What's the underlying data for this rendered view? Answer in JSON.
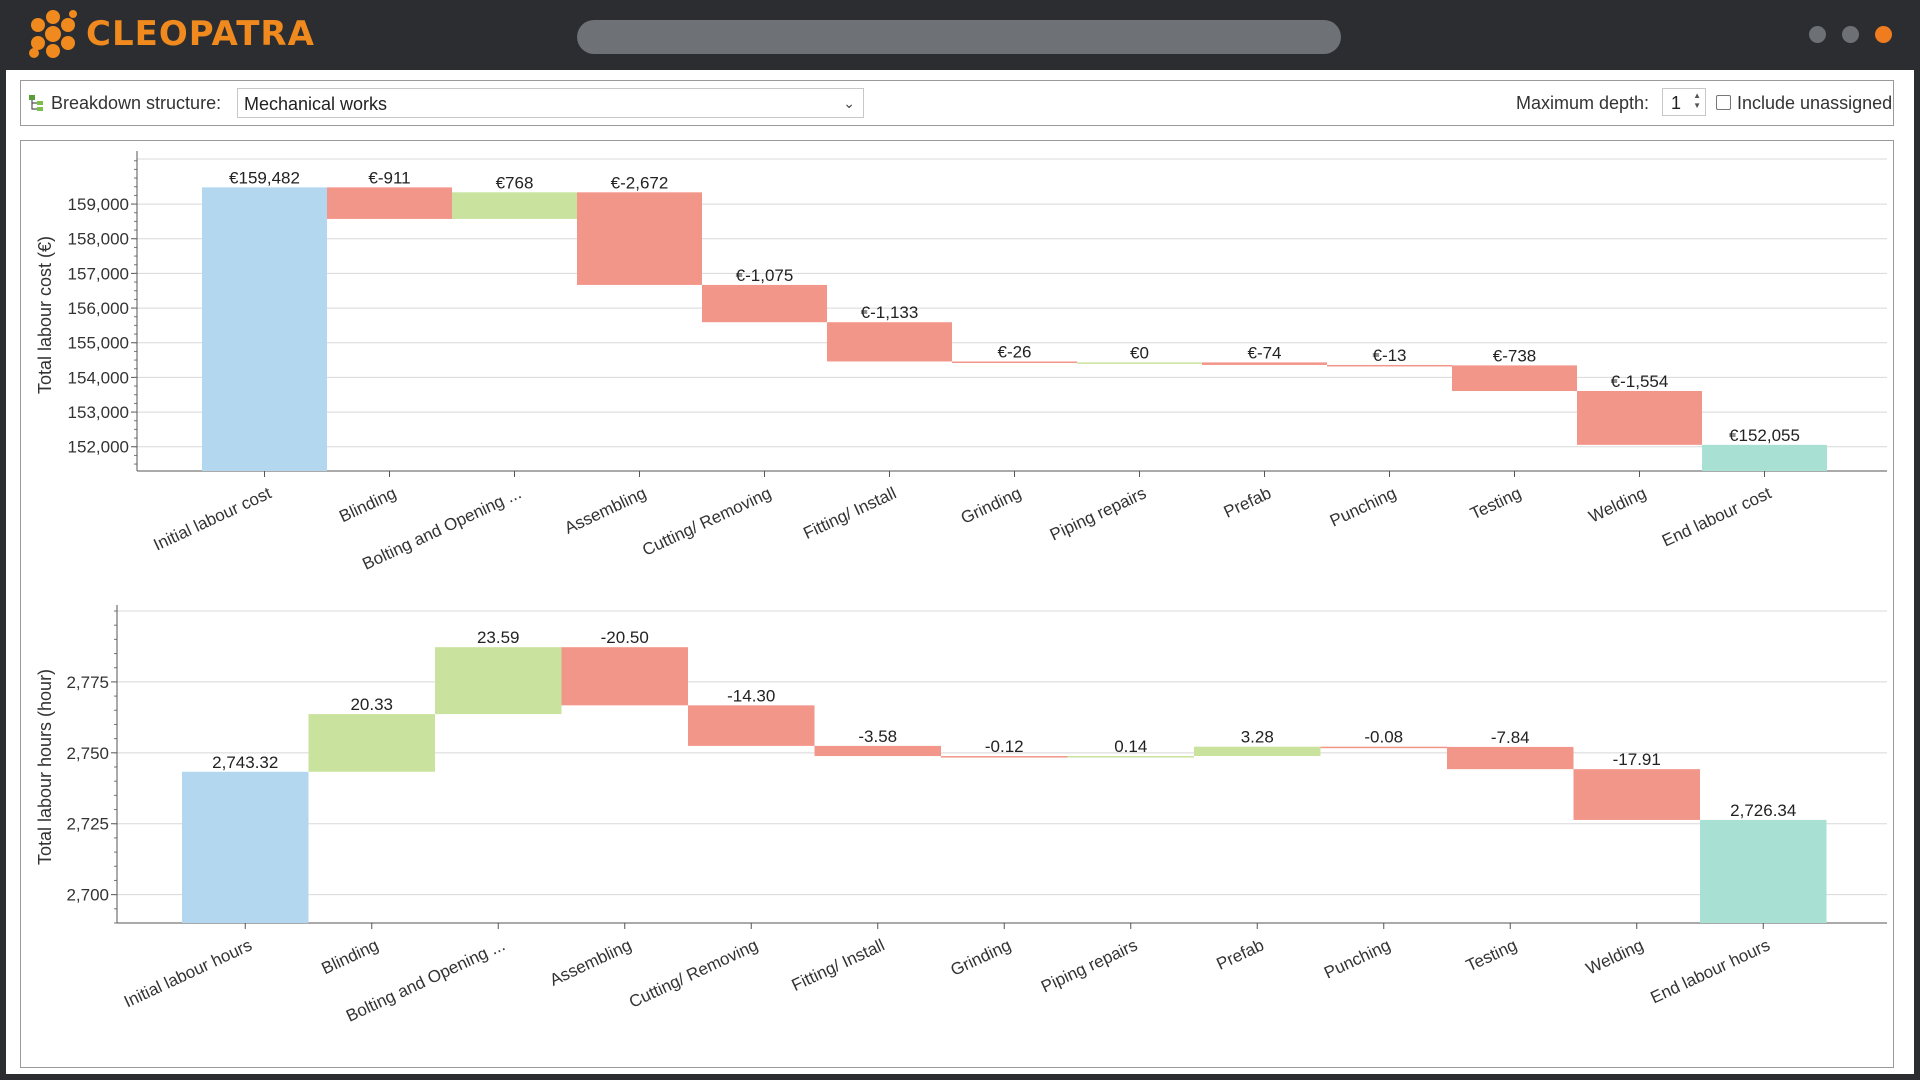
{
  "app": {
    "name": "CLEOPATRA",
    "colors": {
      "brand": "#f08a1e",
      "increase": "#c9e39e",
      "decrease": "#f3968a",
      "start": "#b3d7ef",
      "end": "#a9e0d4"
    }
  },
  "toolbar": {
    "breakdown_label": "Breakdown structure:",
    "breakdown_value": "Mechanical works",
    "max_depth_label": "Maximum depth:",
    "max_depth_value": "1",
    "include_unassigned_label": "Include unassigned",
    "include_unassigned_checked": false
  },
  "chart_data": [
    {
      "type": "waterfall",
      "ylabel": "Total labour cost (€)",
      "ylim": [
        151300,
        160300
      ],
      "yticks": [
        152000,
        153000,
        154000,
        155000,
        156000,
        157000,
        158000,
        159000
      ],
      "ytick_labels": [
        "152,000",
        "153,000",
        "154,000",
        "155,000",
        "156,000",
        "157,000",
        "158,000",
        "159,000"
      ],
      "categories": [
        "Initial labour cost",
        "Blinding",
        "Bolting and Opening ...",
        "Assembling",
        "Cutting/ Removing",
        "Fitting/ Install",
        "Grinding",
        "Piping repairs",
        "Prefab",
        "Punching",
        "Testing",
        "Welding",
        "End labour cost"
      ],
      "values": [
        159482,
        -911,
        768,
        -2672,
        -1075,
        -1133,
        -26,
        0,
        -74,
        -13,
        -738,
        -1554,
        152055
      ],
      "labels": [
        "€159,482",
        "€-911",
        "€768",
        "€-2,672",
        "€-1,075",
        "€-1,133",
        "€-26",
        "€0",
        "€-74",
        "€-13",
        "€-738",
        "€-1,554",
        "€152,055"
      ],
      "kinds": [
        "start",
        "delta",
        "delta",
        "delta",
        "delta",
        "delta",
        "delta",
        "delta",
        "delta",
        "delta",
        "delta",
        "delta",
        "end"
      ]
    },
    {
      "type": "waterfall",
      "ylabel": "Total labour hours (hour)",
      "ylim": [
        2690,
        2800
      ],
      "yticks": [
        2700,
        2725,
        2750,
        2775
      ],
      "ytick_labels": [
        "2,700",
        "2,725",
        "2,750",
        "2,775"
      ],
      "categories": [
        "Initial labour hours",
        "Blinding",
        "Bolting and Opening ...",
        "Assembling",
        "Cutting/ Removing",
        "Fitting/ Install",
        "Grinding",
        "Piping repairs",
        "Prefab",
        "Punching",
        "Testing",
        "Welding",
        "End labour hours"
      ],
      "values": [
        2743.32,
        20.33,
        23.59,
        -20.5,
        -14.3,
        -3.58,
        -0.12,
        0.14,
        3.28,
        -0.08,
        -7.84,
        -17.91,
        2726.34
      ],
      "labels": [
        "2,743.32",
        "20.33",
        "23.59",
        "-20.50",
        "-14.30",
        "-3.58",
        "-0.12",
        "0.14",
        "3.28",
        "-0.08",
        "-7.84",
        "-17.91",
        "2,726.34"
      ],
      "kinds": [
        "start",
        "delta",
        "delta",
        "delta",
        "delta",
        "delta",
        "delta",
        "delta",
        "delta",
        "delta",
        "delta",
        "delta",
        "end"
      ]
    }
  ]
}
